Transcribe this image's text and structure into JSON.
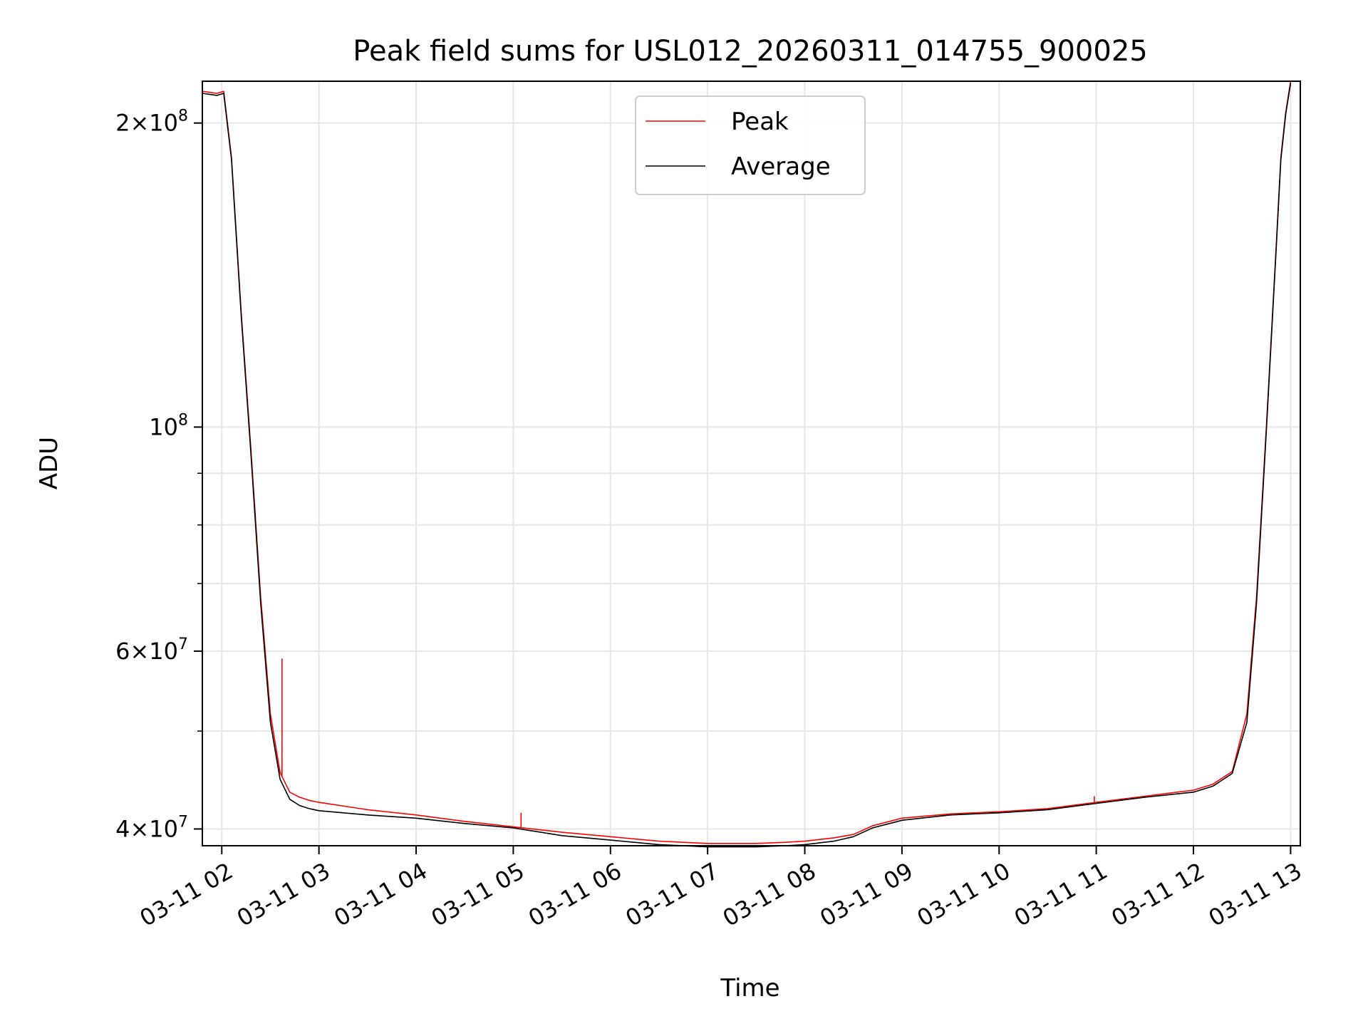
{
  "chart_data": {
    "type": "line",
    "title": "Peak field sums for USL012_20260311_014755_900025",
    "xlabel": "Time",
    "ylabel": "ADU",
    "yscale": "log",
    "xlim": [
      1.8,
      13.1
    ],
    "ylim": [
      38500000,
      220000000
    ],
    "x_ticks": [
      {
        "value": 2,
        "label": "03-11 02"
      },
      {
        "value": 3,
        "label": "03-11 03"
      },
      {
        "value": 4,
        "label": "03-11 04"
      },
      {
        "value": 5,
        "label": "03-11 05"
      },
      {
        "value": 6,
        "label": "03-11 06"
      },
      {
        "value": 7,
        "label": "03-11 07"
      },
      {
        "value": 8,
        "label": "03-11 08"
      },
      {
        "value": 9,
        "label": "03-11 09"
      },
      {
        "value": 10,
        "label": "03-11 10"
      },
      {
        "value": 11,
        "label": "03-11 11"
      },
      {
        "value": 12,
        "label": "03-11 12"
      },
      {
        "value": 13,
        "label": "03-11 13"
      }
    ],
    "y_major_ticks": [
      {
        "value": 40000000,
        "mantissa": "4",
        "exponent": "7"
      },
      {
        "value": 60000000,
        "mantissa": "6",
        "exponent": "7"
      },
      {
        "value": 100000000,
        "mantissa": "",
        "exponent": "8"
      },
      {
        "value": 200000000,
        "mantissa": "2",
        "exponent": "8"
      }
    ],
    "y_minor_ticks": [
      50000000,
      70000000,
      80000000,
      90000000
    ],
    "grid": true,
    "legend_position": "top-center",
    "series": [
      {
        "name": "Peak",
        "color": "#ff0000",
        "x": [
          1.8,
          1.95,
          2.02,
          2.1,
          2.2,
          2.3,
          2.4,
          2.5,
          2.6,
          2.7,
          2.8,
          2.9,
          3.0,
          3.5,
          4.0,
          4.5,
          5.0,
          5.5,
          6.0,
          6.5,
          7.0,
          7.5,
          7.8,
          8.0,
          8.3,
          8.5,
          8.7,
          9.0,
          9.5,
          10.0,
          10.5,
          11.0,
          11.5,
          12.0,
          12.2,
          12.4,
          12.55,
          12.65,
          12.75,
          12.85,
          12.9,
          12.95,
          13.0
        ],
        "y": [
          215000000,
          214000000,
          215000000,
          185000000,
          130000000,
          95000000,
          68000000,
          52000000,
          45500000,
          43500000,
          43000000,
          42700000,
          42500000,
          41800000,
          41300000,
          40700000,
          40200000,
          39700000,
          39300000,
          38900000,
          38700000,
          38700000,
          38800000,
          38900000,
          39200000,
          39500000,
          40300000,
          41000000,
          41400000,
          41600000,
          41900000,
          42500000,
          43100000,
          43700000,
          44300000,
          45600000,
          52000000,
          68000000,
          100000000,
          150000000,
          185000000,
          205000000,
          220000000
        ]
      },
      {
        "name": "Average",
        "color": "#000000",
        "x": [
          1.8,
          1.95,
          2.02,
          2.1,
          2.2,
          2.3,
          2.4,
          2.5,
          2.6,
          2.7,
          2.8,
          2.9,
          3.0,
          3.5,
          4.0,
          4.5,
          5.0,
          5.5,
          6.0,
          6.5,
          7.0,
          7.5,
          7.8,
          8.0,
          8.3,
          8.5,
          8.7,
          9.0,
          9.5,
          10.0,
          10.5,
          11.0,
          11.5,
          12.0,
          12.2,
          12.4,
          12.55,
          12.65,
          12.75,
          12.85,
          12.9,
          12.95,
          13.0
        ],
        "y": [
          214000000,
          213000000,
          214000000,
          184000000,
          129000000,
          94000000,
          67000000,
          51000000,
          44800000,
          42800000,
          42200000,
          41900000,
          41700000,
          41300000,
          41000000,
          40500000,
          40100000,
          39400000,
          39000000,
          38600000,
          38400000,
          38400000,
          38500000,
          38600000,
          38900000,
          39300000,
          40100000,
          40800000,
          41300000,
          41500000,
          41800000,
          42400000,
          43000000,
          43500000,
          44100000,
          45400000,
          51000000,
          67000000,
          99000000,
          149000000,
          184000000,
          204000000,
          219000000
        ]
      }
    ],
    "annotations": [
      {
        "series": "Peak",
        "x": 2.62,
        "y": 59000000
      },
      {
        "series": "Peak",
        "x": 5.08,
        "y": 41500000
      },
      {
        "series": "Peak",
        "x": 10.98,
        "y": 43100000
      }
    ]
  }
}
